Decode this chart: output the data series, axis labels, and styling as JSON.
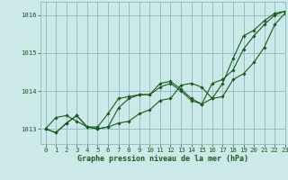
{
  "title": "Graphe pression niveau de la mer (hPa)",
  "bg_color": "#cce8e8",
  "line_color": "#1a5c1a",
  "grid_color": "#88bbbb",
  "xlim": [
    -0.5,
    23
  ],
  "ylim": [
    1012.6,
    1016.35
  ],
  "yticks": [
    1013,
    1014,
    1015,
    1016
  ],
  "xticks": [
    0,
    1,
    2,
    3,
    4,
    5,
    6,
    7,
    8,
    9,
    10,
    11,
    12,
    13,
    14,
    15,
    16,
    17,
    18,
    19,
    20,
    21,
    22,
    23
  ],
  "series": [
    [
      1013.0,
      1012.9,
      1013.15,
      1013.35,
      1013.05,
      1013.0,
      1013.05,
      1013.15,
      1013.2,
      1013.4,
      1013.5,
      1013.75,
      1013.8,
      1014.15,
      1014.2,
      1014.1,
      1013.8,
      1013.85,
      1014.3,
      1014.45,
      1014.75,
      1015.15,
      1015.75,
      1016.05
    ],
    [
      1013.0,
      1012.9,
      1013.15,
      1013.35,
      1013.05,
      1013.0,
      1013.05,
      1013.55,
      1013.8,
      1013.9,
      1013.9,
      1014.2,
      1014.25,
      1014.05,
      1013.8,
      1013.65,
      1013.8,
      1014.2,
      1014.85,
      1015.45,
      1015.6,
      1015.85,
      1016.05,
      1016.1
    ],
    [
      1013.0,
      1013.3,
      1013.35,
      1013.2,
      1013.05,
      1013.05,
      1013.4,
      1013.8,
      1013.85,
      1013.9,
      1013.9,
      1014.1,
      1014.2,
      1014.0,
      1013.75,
      1013.65,
      1014.2,
      1014.3,
      1014.55,
      1015.1,
      1015.45,
      1015.75,
      1016.0,
      1016.1
    ]
  ]
}
